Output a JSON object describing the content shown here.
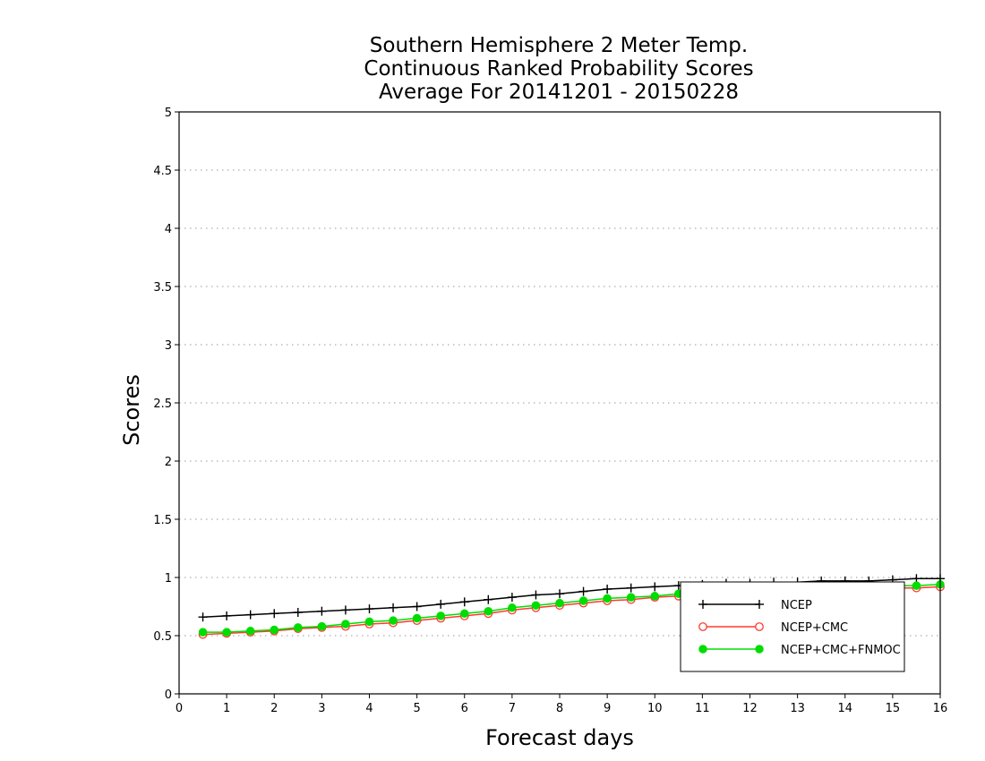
{
  "chart_data": {
    "type": "line",
    "title": [
      "Southern Hemisphere 2 Meter Temp.",
      "Continuous Ranked Probability Scores",
      "Average For 20141201 - 20150228"
    ],
    "xlabel": "Forecast days",
    "ylabel": "Scores",
    "xlim": [
      0,
      16
    ],
    "ylim": [
      0,
      5
    ],
    "xticks": [
      0,
      1,
      2,
      3,
      4,
      5,
      6,
      7,
      8,
      9,
      10,
      11,
      12,
      13,
      14,
      15,
      16
    ],
    "yticks": [
      0,
      0.5,
      1,
      1.5,
      2,
      2.5,
      3,
      3.5,
      4,
      4.5,
      5
    ],
    "ytick_labels": [
      "0",
      "0.5",
      "1",
      "1.5",
      "2",
      "2.5",
      "3",
      "3.5",
      "4",
      "4.5",
      "5"
    ],
    "grid": "horizontal-dotted",
    "legend": "bottom-right",
    "x": [
      0.5,
      1,
      1.5,
      2,
      2.5,
      3,
      3.5,
      4,
      4.5,
      5,
      5.5,
      6,
      6.5,
      7,
      7.5,
      8,
      8.5,
      9,
      9.5,
      10,
      10.5,
      11,
      11.5,
      12,
      12.5,
      13,
      13.5,
      14,
      14.5,
      15,
      15.5,
      16
    ],
    "series": [
      {
        "name": "NCEP",
        "color": "#000000",
        "marker": "plus",
        "values": [
          0.66,
          0.67,
          0.68,
          0.69,
          0.7,
          0.71,
          0.72,
          0.73,
          0.74,
          0.75,
          0.77,
          0.79,
          0.81,
          0.83,
          0.85,
          0.86,
          0.88,
          0.9,
          0.91,
          0.92,
          0.93,
          0.94,
          0.95,
          0.95,
          0.96,
          0.96,
          0.97,
          0.97,
          0.97,
          0.98,
          0.99,
          0.99
        ]
      },
      {
        "name": "NCEP+CMC",
        "color": "#ff3b30",
        "marker": "open-circle",
        "values": [
          0.51,
          0.52,
          0.53,
          0.54,
          0.56,
          0.57,
          0.58,
          0.6,
          0.61,
          0.63,
          0.65,
          0.67,
          0.69,
          0.72,
          0.74,
          0.76,
          0.78,
          0.8,
          0.81,
          0.83,
          0.84,
          0.85,
          0.86,
          0.87,
          0.88,
          0.89,
          0.9,
          0.9,
          0.91,
          0.91,
          0.91,
          0.92
        ]
      },
      {
        "name": "NCEP+CMC+FNMOC",
        "color": "#00dd00",
        "marker": "filled-circle",
        "values": [
          0.53,
          0.53,
          0.54,
          0.55,
          0.57,
          0.58,
          0.6,
          0.62,
          0.63,
          0.65,
          0.67,
          0.69,
          0.71,
          0.74,
          0.76,
          0.78,
          0.8,
          0.82,
          0.83,
          0.84,
          0.86,
          0.87,
          0.88,
          0.89,
          0.9,
          0.91,
          0.91,
          0.92,
          0.92,
          0.93,
          0.93,
          0.94
        ]
      }
    ]
  }
}
